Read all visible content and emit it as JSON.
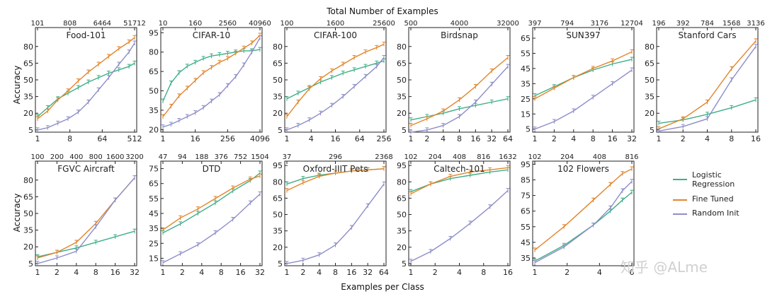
{
  "header": {
    "title": "Total Number of Examples"
  },
  "footer": {
    "xlabel": "Examples per Class"
  },
  "side": {
    "ylabel": "Accuracy"
  },
  "watermark": {
    "text": "知乎 @ALme"
  },
  "colors": {
    "logistic": "#3fae88",
    "finetuned": "#e2852c",
    "random": "#8d8ec8"
  },
  "legend": {
    "items": [
      {
        "label": "Logistic Regression",
        "key": "logistic"
      },
      {
        "label": "Fine Tuned",
        "key": "finetuned"
      },
      {
        "label": "Random Init",
        "key": "random"
      }
    ]
  },
  "chart_data": [
    {
      "type": "line",
      "title": "Food-101",
      "x_ticks": [
        "1",
        "8",
        "64",
        "512"
      ],
      "top_ticks": [
        "101",
        "808",
        "6464",
        "51712"
      ],
      "y_ticks": [
        "5",
        "20",
        "35",
        "50",
        "65",
        "80"
      ],
      "ylim": [
        3,
        97
      ],
      "x": [
        1,
        2,
        4,
        8,
        16,
        32,
        64,
        128,
        256,
        512,
        750
      ],
      "series": [
        {
          "key": "logistic",
          "values": [
            17,
            25,
            33,
            38,
            43,
            48,
            52,
            56,
            59,
            62,
            65
          ]
        },
        {
          "key": "finetuned",
          "values": [
            15,
            22,
            32,
            40,
            49,
            57,
            64,
            71,
            78,
            84,
            88
          ]
        },
        {
          "key": "random",
          "values": [
            5,
            7,
            11,
            15,
            21,
            30,
            41,
            52,
            64,
            75,
            83
          ]
        }
      ]
    },
    {
      "type": "line",
      "title": "CIFAR-10",
      "x_ticks": [
        "1",
        "16",
        "256",
        "4096"
      ],
      "top_ticks": [
        "10",
        "160",
        "2560",
        "40960"
      ],
      "y_ticks": [
        "20",
        "35",
        "50",
        "65",
        "80",
        "95"
      ],
      "ylim": [
        18,
        99
      ],
      "x": [
        1,
        2,
        4,
        8,
        16,
        32,
        64,
        128,
        256,
        512,
        1024,
        2048,
        4096
      ],
      "series": [
        {
          "key": "logistic",
          "values": [
            42,
            56,
            64,
            69,
            72,
            75,
            77,
            78,
            79,
            80,
            81,
            81,
            82
          ]
        },
        {
          "key": "finetuned",
          "values": [
            30,
            38,
            46,
            52,
            58,
            64,
            68,
            72,
            75,
            79,
            83,
            87,
            93
          ]
        },
        {
          "key": "random",
          "values": [
            22,
            24,
            27,
            30,
            33,
            37,
            42,
            47,
            54,
            61,
            70,
            80,
            91
          ]
        }
      ]
    },
    {
      "type": "line",
      "title": "CIFAR-100",
      "x_ticks": [
        "1",
        "4",
        "16",
        "64",
        "256"
      ],
      "top_ticks": [
        "100",
        "1600",
        "25600"
      ],
      "y_ticks": [
        "5",
        "20",
        "35",
        "50",
        "65",
        "80"
      ],
      "ylim": [
        3,
        97
      ],
      "x": [
        1,
        2,
        4,
        8,
        16,
        32,
        64,
        128,
        256,
        400
      ],
      "series": [
        {
          "key": "logistic",
          "values": [
            33,
            38,
            43,
            48,
            52,
            56,
            59,
            62,
            65,
            67
          ]
        },
        {
          "key": "finetuned",
          "values": [
            17,
            30,
            42,
            51,
            58,
            64,
            70,
            75,
            79,
            82
          ]
        },
        {
          "key": "random",
          "values": [
            5,
            9,
            14,
            20,
            27,
            35,
            44,
            53,
            62,
            70
          ]
        }
      ]
    },
    {
      "type": "line",
      "title": "Birdsnap",
      "x_ticks": [
        "1",
        "2",
        "4",
        "8",
        "16",
        "32",
        "64"
      ],
      "top_ticks": [
        "500",
        "4000",
        "32000"
      ],
      "y_ticks": [
        "5",
        "20",
        "35",
        "50",
        "65",
        "80"
      ],
      "ylim": [
        3,
        97
      ],
      "x": [
        1,
        2,
        4,
        8,
        16,
        32,
        64
      ],
      "series": [
        {
          "key": "logistic",
          "values": [
            14,
            17,
            20,
            24,
            27,
            30,
            33
          ]
        },
        {
          "key": "finetuned",
          "values": [
            9,
            15,
            22,
            32,
            44,
            58,
            70
          ]
        },
        {
          "key": "random",
          "values": [
            3,
            5,
            9,
            17,
            30,
            46,
            62
          ]
        }
      ]
    },
    {
      "type": "line",
      "title": "SUN397",
      "x_ticks": [
        "1",
        "2",
        "4",
        "8",
        "16",
        "32"
      ],
      "top_ticks": [
        "397",
        "794",
        "3176",
        "12704"
      ],
      "y_ticks": [
        "5",
        "15",
        "25",
        "35",
        "45",
        "55",
        "65"
      ],
      "ylim": [
        3,
        72
      ],
      "x": [
        1,
        2,
        4,
        8,
        16,
        32
      ],
      "series": [
        {
          "key": "logistic",
          "values": [
            27,
            33,
            39,
            44,
            48,
            51
          ]
        },
        {
          "key": "finetuned",
          "values": [
            25,
            32,
            39,
            45,
            50,
            56
          ]
        },
        {
          "key": "random",
          "values": [
            5,
            10,
            17,
            26,
            35,
            44
          ]
        }
      ]
    },
    {
      "type": "line",
      "title": "Stanford Cars",
      "x_ticks": [
        "1",
        "2",
        "4",
        "8",
        "16"
      ],
      "top_ticks": [
        "196",
        "392",
        "784",
        "1568",
        "3136"
      ],
      "y_ticks": [
        "5",
        "20",
        "35",
        "50",
        "65",
        "80"
      ],
      "ylim": [
        3,
        97
      ],
      "x": [
        1,
        2,
        4,
        8,
        16
      ],
      "series": [
        {
          "key": "logistic",
          "values": [
            11,
            14,
            19,
            25,
            32
          ]
        },
        {
          "key": "finetuned",
          "values": [
            6,
            15,
            30,
            60,
            85
          ]
        },
        {
          "key": "random",
          "values": [
            4,
            8,
            15,
            50,
            80
          ]
        }
      ]
    },
    {
      "type": "line",
      "title": "FGVC Aircraft",
      "x_ticks": [
        "1",
        "2",
        "4",
        "8",
        "16",
        "32"
      ],
      "top_ticks": [
        "100",
        "200",
        "400",
        "800",
        "1600",
        "3200"
      ],
      "y_ticks": [
        "5",
        "20",
        "35",
        "50",
        "65",
        "80"
      ],
      "ylim": [
        3,
        97
      ],
      "x": [
        1,
        2,
        4,
        8,
        16,
        32
      ],
      "series": [
        {
          "key": "logistic",
          "values": [
            11,
            15,
            19,
            24,
            29,
            34
          ]
        },
        {
          "key": "finetuned",
          "values": [
            10,
            15,
            24,
            41,
            62,
            82
          ]
        },
        {
          "key": "random",
          "values": [
            5,
            10,
            16,
            38,
            62,
            82
          ]
        }
      ]
    },
    {
      "type": "line",
      "title": "DTD",
      "x_ticks": [
        "1",
        "2",
        "4",
        "8",
        "16",
        "32"
      ],
      "top_ticks": [
        "47",
        "94",
        "188",
        "376",
        "752",
        "1504"
      ],
      "y_ticks": [
        "15",
        "25",
        "35",
        "45",
        "55",
        "65",
        "75"
      ],
      "ylim": [
        10,
        80
      ],
      "x": [
        1,
        2,
        4,
        8,
        16,
        32,
        47
      ],
      "series": [
        {
          "key": "logistic",
          "values": [
            32,
            38,
            45,
            52,
            60,
            67,
            72
          ]
        },
        {
          "key": "finetuned",
          "values": [
            34,
            42,
            48,
            55,
            62,
            68,
            70
          ]
        },
        {
          "key": "random",
          "values": [
            12,
            18,
            24,
            32,
            41,
            52,
            58
          ]
        }
      ]
    },
    {
      "type": "line",
      "title": "Oxford-IIIT Pets",
      "x_ticks": [
        "1",
        "2",
        "4",
        "8",
        "16",
        "32",
        "64"
      ],
      "top_ticks": [
        "37",
        "296",
        "2368"
      ],
      "y_ticks": [
        "5",
        "20",
        "35",
        "50",
        "65",
        "80",
        "95"
      ],
      "ylim": [
        3,
        99
      ],
      "x": [
        1,
        2,
        4,
        8,
        16,
        32,
        64
      ],
      "series": [
        {
          "key": "logistic",
          "values": [
            78,
            83,
            86,
            88,
            90,
            91,
            92
          ]
        },
        {
          "key": "finetuned",
          "values": [
            72,
            79,
            85,
            88,
            90,
            91,
            92
          ]
        },
        {
          "key": "random",
          "values": [
            5,
            8,
            13,
            22,
            38,
            58,
            78
          ]
        }
      ]
    },
    {
      "type": "line",
      "title": "Caltech-101",
      "x_ticks": [
        "1",
        "2",
        "4",
        "8",
        "16"
      ],
      "top_ticks": [
        "102",
        "204",
        "408",
        "816",
        "1632"
      ],
      "y_ticks": [
        "5",
        "20",
        "35",
        "50",
        "65",
        "80",
        "95"
      ],
      "ylim": [
        3,
        99
      ],
      "x": [
        1,
        2,
        4,
        8,
        16,
        30
      ],
      "series": [
        {
          "key": "logistic",
          "values": [
            71,
            78,
            83,
            86,
            89,
            91
          ]
        },
        {
          "key": "finetuned",
          "values": [
            69,
            78,
            85,
            89,
            91,
            93
          ]
        },
        {
          "key": "random",
          "values": [
            7,
            16,
            28,
            42,
            57,
            72
          ]
        }
      ]
    },
    {
      "type": "line",
      "title": "102 Flowers",
      "x_ticks": [
        "1",
        "2",
        "4",
        "6"
      ],
      "top_ticks": [
        "102",
        "204",
        "408",
        "816"
      ],
      "y_ticks": [
        "35",
        "45",
        "55",
        "65",
        "75",
        "85",
        "95"
      ],
      "ylim": [
        30,
        97
      ],
      "x": [
        1,
        2,
        4,
        6,
        8,
        10
      ],
      "series": [
        {
          "key": "logistic",
          "values": [
            33,
            43,
            56,
            65,
            72,
            77
          ]
        },
        {
          "key": "finetuned",
          "values": [
            40,
            55,
            72,
            82,
            89,
            92
          ]
        },
        {
          "key": "random",
          "values": [
            32,
            42,
            56,
            67,
            78,
            84
          ]
        }
      ]
    }
  ]
}
